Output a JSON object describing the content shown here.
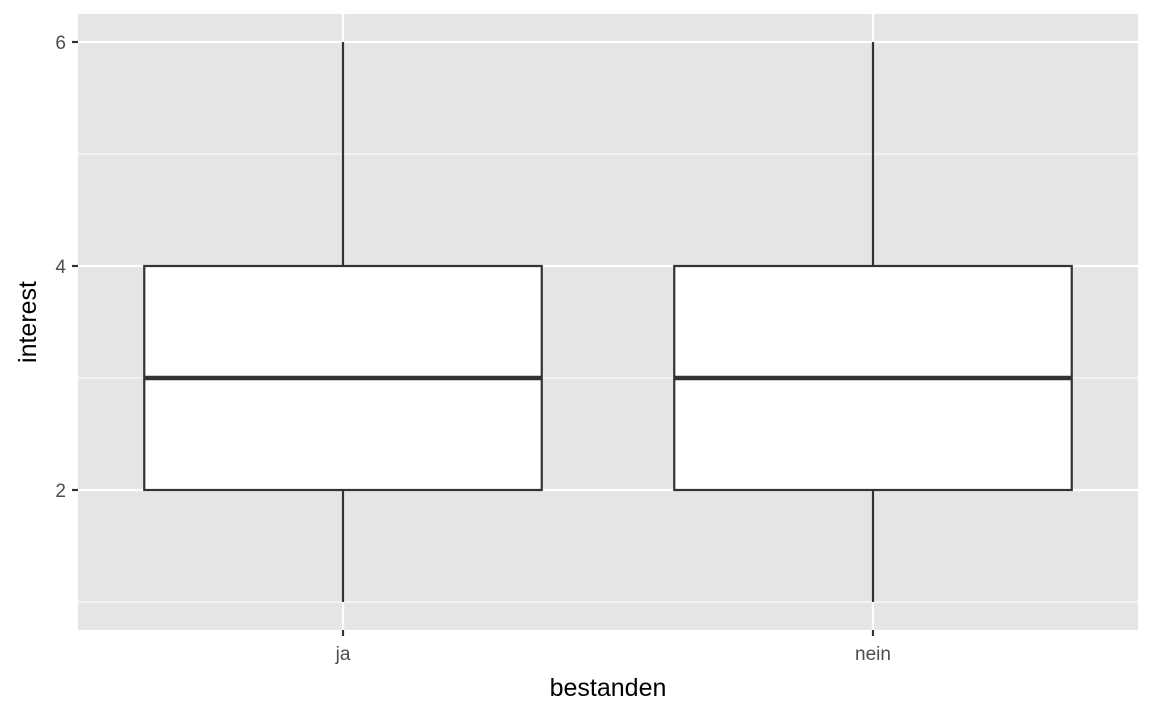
{
  "chart_data": {
    "type": "boxplot",
    "title": "",
    "xlabel": "bestanden",
    "ylabel": "interest",
    "categories": [
      "ja",
      "nein"
    ],
    "boxes": [
      {
        "category": "ja",
        "whisker_low": 1,
        "q1": 2,
        "median": 3,
        "q3": 4,
        "whisker_high": 6
      },
      {
        "category": "nein",
        "whisker_low": 1,
        "q1": 2,
        "median": 3,
        "q3": 4,
        "whisker_high": 6
      }
    ],
    "ylim": [
      0.75,
      6.25
    ],
    "y_ticks": [
      2,
      4,
      6
    ],
    "y_minor_ticks": [
      1,
      3,
      5
    ],
    "grid": true,
    "colors": {
      "panel": "#e5e5e5",
      "grid": "#ffffff",
      "box_fill": "#ffffff",
      "box_stroke": "#333333",
      "tick": "#333333"
    }
  }
}
